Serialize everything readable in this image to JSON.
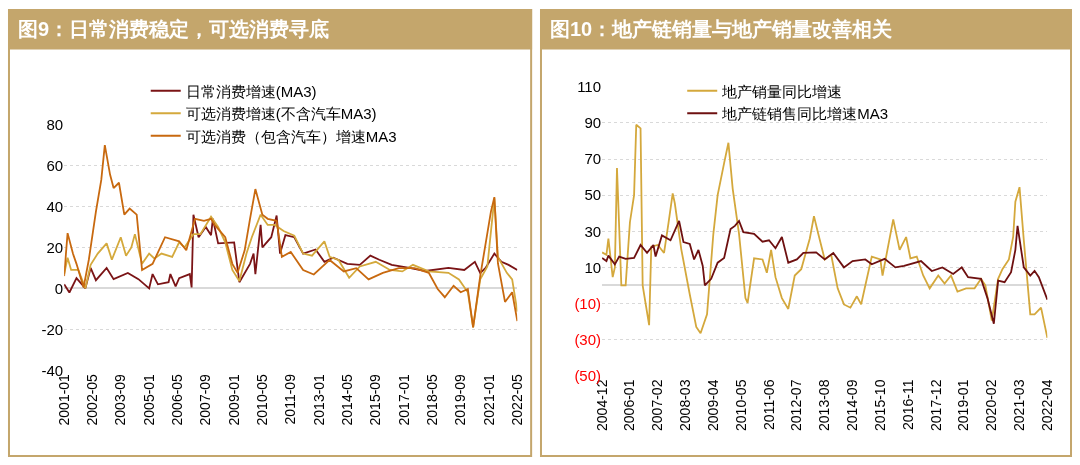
{
  "chart_data": [
    {
      "type": "line",
      "title": "图9：日常消费稳定，可选消费寻底",
      "legend": "top",
      "grid": "y",
      "marker": "none",
      "line_style": "solid",
      "xlim": [
        "2001-01",
        "2022-05"
      ],
      "xticks": [
        "2001-01",
        "2002-05",
        "2003-09",
        "2005-01",
        "2006-05",
        "2007-09",
        "2009-01",
        "2010-05",
        "2011-09",
        "2013-01",
        "2014-05",
        "2015-09",
        "2017-01",
        "2018-05",
        "2019-09",
        "2021-01",
        "2022-05"
      ],
      "ylim": [
        -40,
        80
      ],
      "yticks": [
        -40,
        -20,
        0,
        20,
        40,
        60,
        80
      ],
      "series": [
        {
          "name": "日常消费增速(MA3)",
          "color": "#7b1416",
          "x": [
            "2001-01",
            "2001-04",
            "2001-08",
            "2002-01",
            "2002-04",
            "2002-07",
            "2003-01",
            "2003-05",
            "2004-01",
            "2004-07",
            "2005-01",
            "2005-03",
            "2005-06",
            "2005-12",
            "2006-01",
            "2006-04",
            "2006-06",
            "2006-12",
            "2007-01",
            "2007-02",
            "2007-05",
            "2007-09",
            "2007-12",
            "2008-01",
            "2008-04",
            "2009-01",
            "2009-04",
            "2009-10",
            "2009-12",
            "2010-01",
            "2010-04",
            "2010-05",
            "2010-10",
            "2011-01",
            "2011-03",
            "2011-06",
            "2011-11",
            "2012-04",
            "2012-11",
            "2013-04",
            "2013-09",
            "2014-05",
            "2014-12",
            "2015-06",
            "2015-11",
            "2016-06",
            "2017-04",
            "2018-01",
            "2019-02",
            "2019-11",
            "2020-05",
            "2020-08",
            "2020-11",
            "2021-04",
            "2021-08",
            "2021-12",
            "2022-05"
          ],
          "values": [
            2,
            -2,
            5,
            0,
            10,
            4,
            10,
            4.5,
            7.5,
            4.5,
            0,
            7,
            2,
            3,
            7,
            1,
            5,
            7,
            0.5,
            36,
            25,
            30,
            26,
            34,
            22,
            22.5,
            3,
            12,
            17,
            7,
            31,
            20,
            25,
            35.6,
            17,
            26,
            25,
            17,
            19,
            13,
            15,
            12,
            11.5,
            16,
            14,
            11.5,
            10,
            8.5,
            10,
            9,
            13,
            7.5,
            10,
            17,
            13,
            11.5,
            9
          ]
        },
        {
          "name": "可选消费增速(不含汽车MA3)",
          "color": "#d4a93c",
          "x": [
            "2001-01",
            "2001-03",
            "2001-05",
            "2001-09",
            "2001-11",
            "2002-01",
            "2002-04",
            "2002-08",
            "2003-01",
            "2003-04",
            "2003-09",
            "2003-12",
            "2004-03",
            "2004-05",
            "2004-09",
            "2005-01",
            "2005-04",
            "2005-08",
            "2006-02",
            "2006-06",
            "2006-09",
            "2007-02",
            "2007-06",
            "2007-12",
            "2008-04",
            "2008-08",
            "2008-12",
            "2009-04",
            "2009-08",
            "2009-11",
            "2010-04",
            "2010-08",
            "2010-12",
            "2011-05",
            "2011-11",
            "2012-04",
            "2012-09",
            "2013-04",
            "2013-07",
            "2013-12",
            "2014-06",
            "2014-12",
            "2015-09",
            "2016-05",
            "2016-12",
            "2017-06",
            "2018-03",
            "2019-02",
            "2019-08",
            "2020-01",
            "2020-04",
            "2020-08",
            "2020-12",
            "2021-04",
            "2021-06",
            "2021-11",
            "2022-02",
            "2022-05"
          ],
          "values": [
            7,
            15,
            9,
            9,
            4.5,
            0,
            11.5,
            17,
            22,
            14,
            25,
            16,
            20,
            26.5,
            12,
            17,
            14.6,
            17,
            15.4,
            22.5,
            20,
            26.5,
            26.5,
            35,
            30,
            22.5,
            9,
            3.6,
            17,
            25,
            36,
            31,
            31,
            28,
            25.7,
            17,
            16,
            23,
            15.4,
            13.9,
            5.2,
            10.7,
            13,
            9,
            8.3,
            11.5,
            8.3,
            7.6,
            4.4,
            -1.9,
            -19,
            4.4,
            10.7,
            44,
            15.4,
            7.6,
            4.4,
            -11.3
          ]
        },
        {
          "name": "可选消费（包含汽车）增速MA3",
          "color": "#c8690f",
          "x": [
            "2001-01",
            "2001-03",
            "2001-06",
            "2001-08",
            "2001-12",
            "2002-03",
            "2002-07",
            "2002-10",
            "2002-12",
            "2003-03",
            "2003-05",
            "2003-08",
            "2003-11",
            "2004-02",
            "2004-06",
            "2004-09",
            "2005-03",
            "2005-10",
            "2006-06",
            "2006-10",
            "2007-03",
            "2007-08",
            "2007-12",
            "2008-02",
            "2008-08",
            "2008-12",
            "2009-03",
            "2009-07",
            "2009-10",
            "2010-01",
            "2010-05",
            "2010-08",
            "2011-01",
            "2011-04",
            "2011-09",
            "2012-04",
            "2012-10",
            "2013-07",
            "2014-03",
            "2014-10",
            "2015-05",
            "2016-01",
            "2016-10",
            "2017-07",
            "2018-03",
            "2018-08",
            "2018-12",
            "2019-05",
            "2019-09",
            "2020-01",
            "2020-04",
            "2020-08",
            "2021-02",
            "2021-04",
            "2021-06",
            "2021-10",
            "2022-02",
            "2022-05"
          ],
          "values": [
            6,
            27,
            17,
            12,
            0.5,
            14,
            37.5,
            53,
            70,
            55.6,
            49,
            51.6,
            36,
            39,
            36,
            9,
            12,
            25,
            23,
            18.6,
            34,
            33,
            34,
            31,
            25,
            12,
            7.6,
            18.6,
            34,
            48.5,
            36,
            34,
            33,
            15.4,
            17.8,
            9,
            6.8,
            13.9,
            8.3,
            9.9,
            4.4,
            7.6,
            9.9,
            9.9,
            7.6,
            -0.3,
            -4.3,
            1.3,
            -1.9,
            -0.3,
            -19,
            6,
            37.5,
            44.6,
            12.3,
            -6.6,
            -1.9,
            -16
          ]
        }
      ]
    },
    {
      "type": "line",
      "title": "图10：地产链销量与地产销量改善相关",
      "legend": "top",
      "grid": "y",
      "marker": "none",
      "line_style": "solid",
      "xlim": [
        "2004-12",
        "2022-04"
      ],
      "xticks": [
        "2004-12",
        "2006-01",
        "2007-02",
        "2008-03",
        "2009-04",
        "2010-05",
        "2011-06",
        "2012-07",
        "2013-08",
        "2014-09",
        "2015-10",
        "2016-11",
        "2017-12",
        "2019-01",
        "2020-02",
        "2021-03",
        "2022-04"
      ],
      "ylim": [
        -50,
        110
      ],
      "yticks": [
        {
          "value": -50,
          "label": "(50)"
        },
        {
          "value": -30,
          "label": "(30)"
        },
        {
          "value": -10,
          "label": "(10)"
        },
        10,
        30,
        50,
        70,
        90,
        110
      ],
      "series": [
        {
          "name": "地产销量同比增速",
          "color": "#d4a83c",
          "x": [
            "2004-12",
            "2005-02",
            "2005-03",
            "2005-05",
            "2005-06",
            "2005-07",
            "2005-09",
            "2005-11",
            "2006-01",
            "2006-03",
            "2006-04",
            "2006-06",
            "2006-07",
            "2006-10",
            "2006-11",
            "2007-02",
            "2007-05",
            "2007-07",
            "2007-09",
            "2007-10",
            "2008-01",
            "2008-05",
            "2008-08",
            "2008-10",
            "2009-01",
            "2009-04",
            "2009-06",
            "2009-09",
            "2009-11",
            "2010-01",
            "2010-04",
            "2010-07",
            "2010-08",
            "2010-11",
            "2011-03",
            "2011-05",
            "2011-07",
            "2011-09",
            "2011-12",
            "2012-03",
            "2012-06",
            "2012-09",
            "2013-01",
            "2013-03",
            "2013-05",
            "2013-08",
            "2013-11",
            "2014-02",
            "2014-05",
            "2014-08",
            "2014-11",
            "2015-01",
            "2015-03",
            "2015-06",
            "2015-10",
            "2015-11",
            "2016-04",
            "2016-07",
            "2016-10",
            "2016-12",
            "2017-03",
            "2017-06",
            "2017-09",
            "2018-01",
            "2018-04",
            "2018-07",
            "2018-10",
            "2019-02",
            "2019-06",
            "2019-09",
            "2019-11",
            "2020-02",
            "2020-05",
            "2020-07",
            "2020-10",
            "2020-12",
            "2021-01",
            "2021-03",
            "2021-05",
            "2021-08",
            "2021-10",
            "2022-01",
            "2022-04"
          ],
          "values": [
            18.3,
            17,
            26,
            4.6,
            10,
            65,
            0,
            0,
            35,
            50,
            89,
            87,
            0,
            -22,
            21.5,
            22.4,
            18,
            34,
            51,
            45.5,
            20,
            -5,
            -23,
            -26.5,
            -16,
            28.6,
            50,
            67.7,
            79,
            53.5,
            28.6,
            -7,
            -9.6,
            15,
            14.4,
            7,
            19.7,
            4.6,
            -7,
            -13,
            5.5,
            9,
            26,
            38.4,
            28.6,
            14.4,
            17,
            -1.6,
            -10.5,
            -12.3,
            -6,
            -10.5,
            0,
            16,
            14.4,
            5.5,
            36.6,
            19.7,
            26.8,
            15,
            16,
            5.5,
            -1.6,
            5.5,
            1,
            5.5,
            -3.4,
            -1.6,
            -1.6,
            3.7,
            0,
            -19.4,
            3.7,
            9,
            14.4,
            27,
            46.4,
            54.4,
            25,
            -16,
            -16,
            -12.3,
            -29
          ]
        },
        {
          "name": "地产链销售同比增速MA3",
          "color": "#6e1010",
          "x": [
            "2004-12",
            "2005-02",
            "2005-03",
            "2005-06",
            "2005-08",
            "2005-11",
            "2006-03",
            "2006-06",
            "2006-09",
            "2006-12",
            "2007-01",
            "2007-04",
            "2007-08",
            "2007-12",
            "2008-02",
            "2008-05",
            "2008-07",
            "2008-09",
            "2008-11",
            "2008-12",
            "2009-03",
            "2009-06",
            "2009-09",
            "2009-12",
            "2010-02",
            "2010-04",
            "2010-06",
            "2010-11",
            "2011-03",
            "2011-06",
            "2011-09",
            "2011-12",
            "2012-03",
            "2012-07",
            "2012-10",
            "2013-04",
            "2013-08",
            "2013-12",
            "2014-05",
            "2014-09",
            "2015-03",
            "2015-06",
            "2015-12",
            "2016-05",
            "2016-09",
            "2017-05",
            "2017-10",
            "2018-03",
            "2018-08",
            "2018-12",
            "2019-03",
            "2019-09",
            "2019-12",
            "2020-03",
            "2020-05",
            "2020-08",
            "2020-11",
            "2021-01",
            "2021-02",
            "2021-05",
            "2021-08",
            "2021-10",
            "2021-12",
            "2022-04"
          ],
          "values": [
            15.2,
            13.5,
            16.5,
            11.7,
            16,
            14.7,
            15.2,
            22.4,
            18,
            22.4,
            16,
            27.7,
            25,
            35.7,
            24,
            23,
            14.4,
            19.7,
            10.8,
            0,
            3.7,
            12.6,
            15.2,
            31.2,
            33,
            35.7,
            29.5,
            28.6,
            24.2,
            25,
            20.6,
            26.8,
            12.6,
            14.4,
            18,
            18.3,
            14.4,
            18,
            10,
            13.5,
            14.4,
            11.7,
            14.7,
            10,
            10.8,
            13.5,
            8,
            10,
            6.4,
            10,
            4.6,
            3.7,
            -7,
            -21.2,
            2.7,
            1.8,
            7.3,
            19.7,
            33,
            10,
            5.5,
            8.1,
            4.6,
            -7.9
          ]
        }
      ]
    }
  ]
}
